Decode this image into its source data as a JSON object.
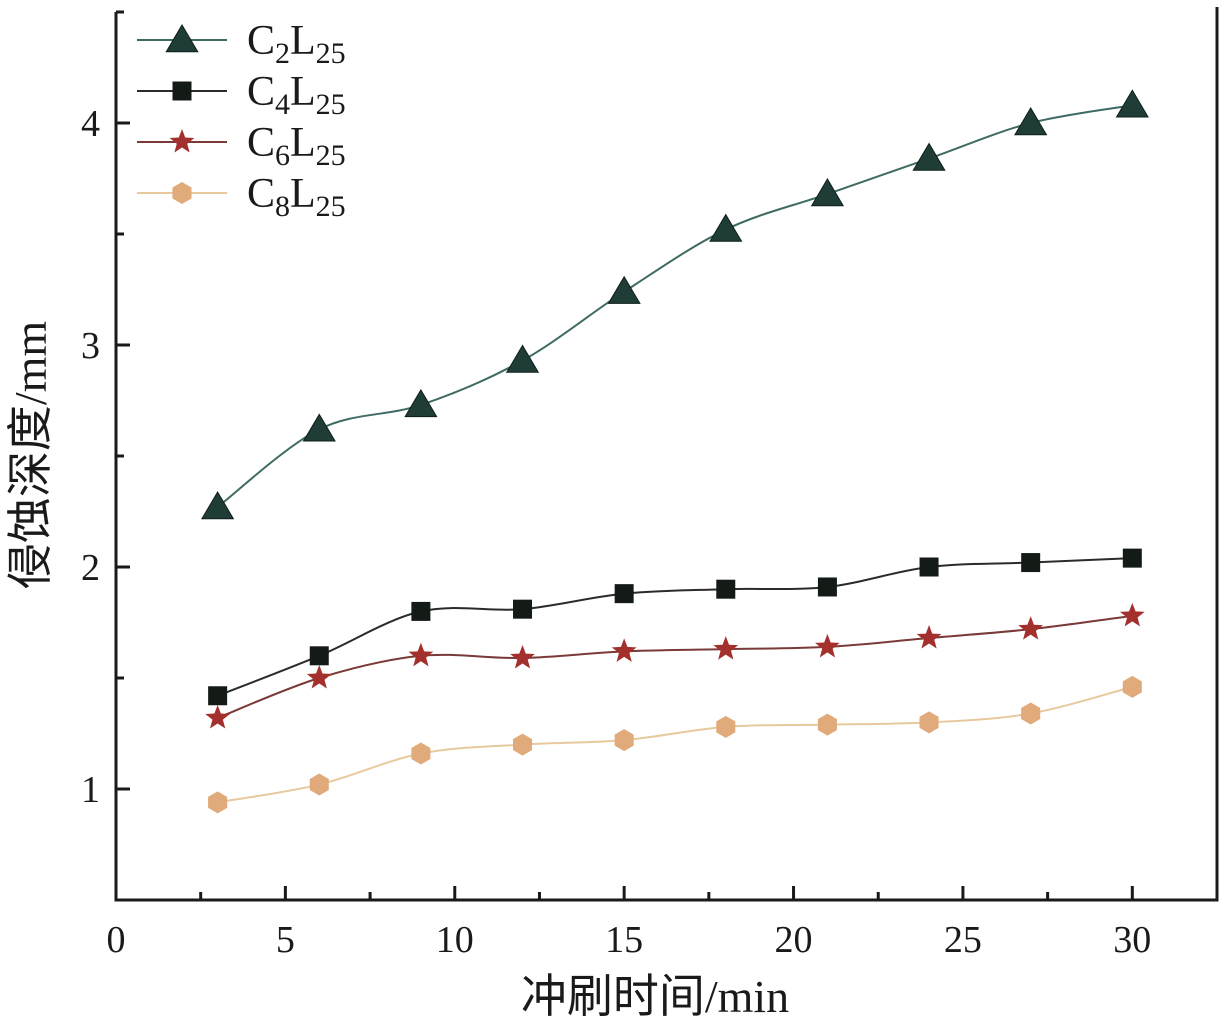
{
  "chart_data": {
    "type": "line",
    "xlabel": "冲刷时间/min",
    "ylabel": "侵蚀深度/mm",
    "xlim": [
      0,
      32.5
    ],
    "ylim": [
      0.5,
      4.5
    ],
    "xticks": [
      "0",
      "5",
      "10",
      "15",
      "20",
      "25",
      "30"
    ],
    "yticks": [
      "1",
      "2",
      "3",
      "4"
    ],
    "x": [
      3,
      6,
      9,
      12,
      15,
      18,
      21,
      24,
      27,
      30
    ],
    "legend_position": "top-left",
    "grid": false,
    "series": [
      {
        "name": "C2L25",
        "label_main": "C",
        "label_sub1": "2",
        "label_mid": "L",
        "label_sub2": "25",
        "marker": "triangle",
        "color": "#1f3d36",
        "line_color": "#3f6b64",
        "values": [
          2.27,
          2.62,
          2.73,
          2.93,
          3.24,
          3.52,
          3.68,
          3.84,
          4.0,
          4.08
        ]
      },
      {
        "name": "C4L25",
        "label_main": "C",
        "label_sub1": "4",
        "label_mid": "L",
        "label_sub2": "25",
        "marker": "square",
        "color": "#141a16",
        "line_color": "#2b2b2b",
        "values": [
          1.42,
          1.6,
          1.8,
          1.81,
          1.88,
          1.9,
          1.91,
          2.0,
          2.02,
          2.04
        ]
      },
      {
        "name": "C6L25",
        "label_main": "C",
        "label_sub1": "6",
        "label_mid": "L",
        "label_sub2": "25",
        "marker": "star",
        "color": "#a3302d",
        "line_color": "#7a3a38",
        "values": [
          1.32,
          1.5,
          1.6,
          1.59,
          1.62,
          1.63,
          1.64,
          1.68,
          1.72,
          1.78
        ]
      },
      {
        "name": "C8L25",
        "label_main": "C",
        "label_sub1": "8",
        "label_mid": "L",
        "label_sub2": "25",
        "marker": "hexagon",
        "color": "#e0aa7a",
        "line_color": "#e8c99e",
        "values": [
          0.94,
          1.02,
          1.16,
          1.2,
          1.22,
          1.28,
          1.29,
          1.3,
          1.34,
          1.46
        ]
      }
    ]
  }
}
